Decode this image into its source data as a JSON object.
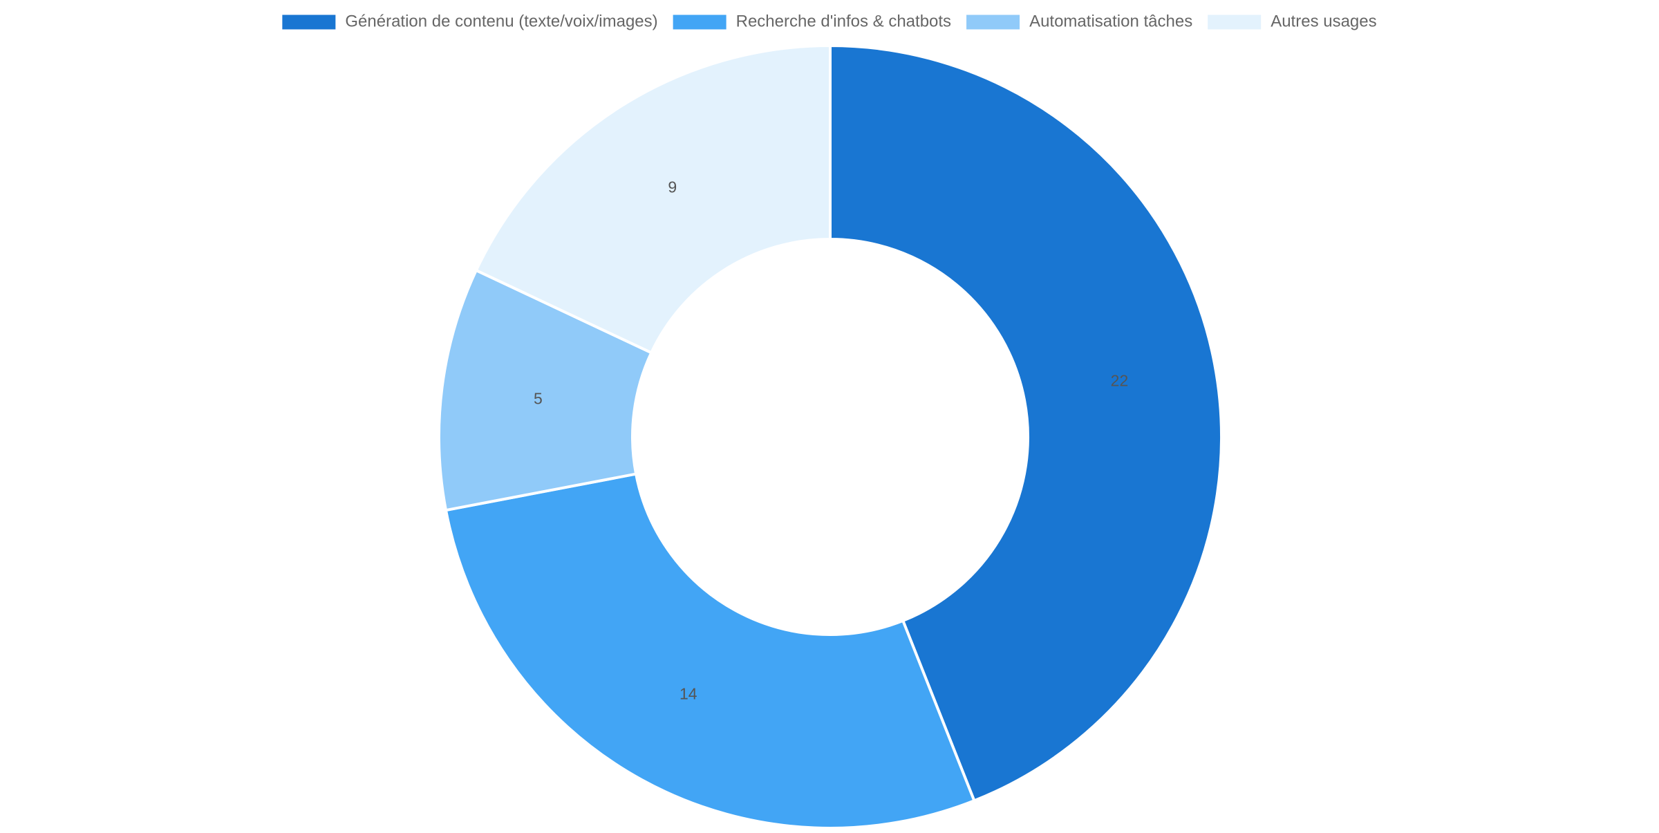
{
  "chart_data": {
    "type": "pie",
    "variant": "donut",
    "title": "",
    "legend_position": "top",
    "labels": [
      "Génération de contenu (texte/voix/images)",
      "Recherche d'infos & chatbots",
      "Automatisation tâches",
      "Autres usages"
    ],
    "values": [
      22,
      14,
      5,
      9
    ],
    "colors": [
      "#1976d2",
      "#42a5f5",
      "#90caf9",
      "#e3f2fd"
    ],
    "data_label_colors": [
      "#555555",
      "#555555",
      "#555555",
      "#555555"
    ],
    "legend_text_color": "#666666"
  }
}
